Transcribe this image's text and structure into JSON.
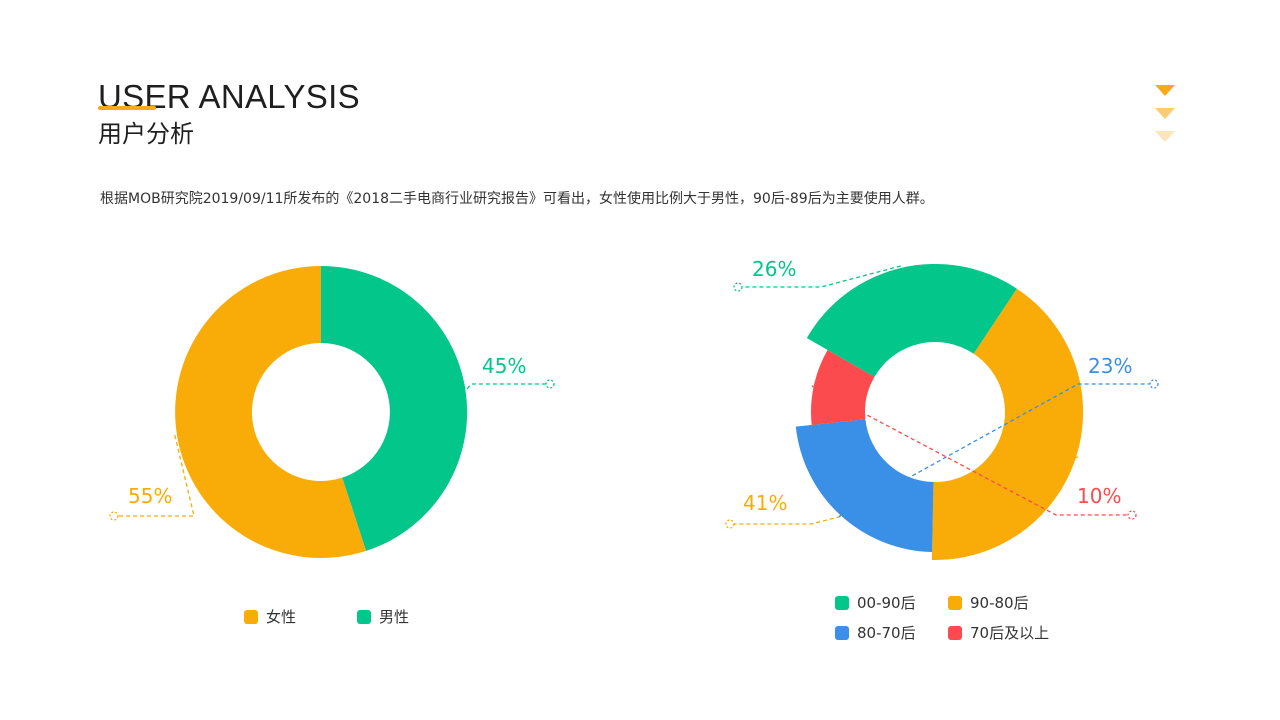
{
  "header": {
    "title_en": "USER ANALYSIS",
    "title_cn": "用户分析",
    "description": "根据MOB研究院2019/09/11所发布的《2018二手电商行业研究报告》可看出，女性使用比例大于男性，90后-89后为主要使用人群。"
  },
  "decoration": {
    "icon": "stacked-triangles-icon",
    "color": "#f9a919"
  },
  "chart_data": [
    {
      "type": "pie",
      "variant": "donut",
      "categories": [
        "女性",
        "男性"
      ],
      "values": [
        55,
        45
      ],
      "labels": [
        "55%",
        "45%"
      ],
      "colors": [
        "#f9ac07",
        "#03c68b"
      ],
      "legend_position": "bottom"
    },
    {
      "type": "pie",
      "variant": "rose-donut",
      "categories": [
        "00-90后",
        "90-80后",
        "80-70后",
        "70后及以上"
      ],
      "values": [
        26,
        41,
        23,
        10
      ],
      "labels": [
        "26%",
        "41%",
        "23%",
        "10%"
      ],
      "colors": [
        "#03c68b",
        "#f9ac07",
        "#3a8fe6",
        "#fb4b4e"
      ],
      "legend_position": "bottom"
    }
  ]
}
